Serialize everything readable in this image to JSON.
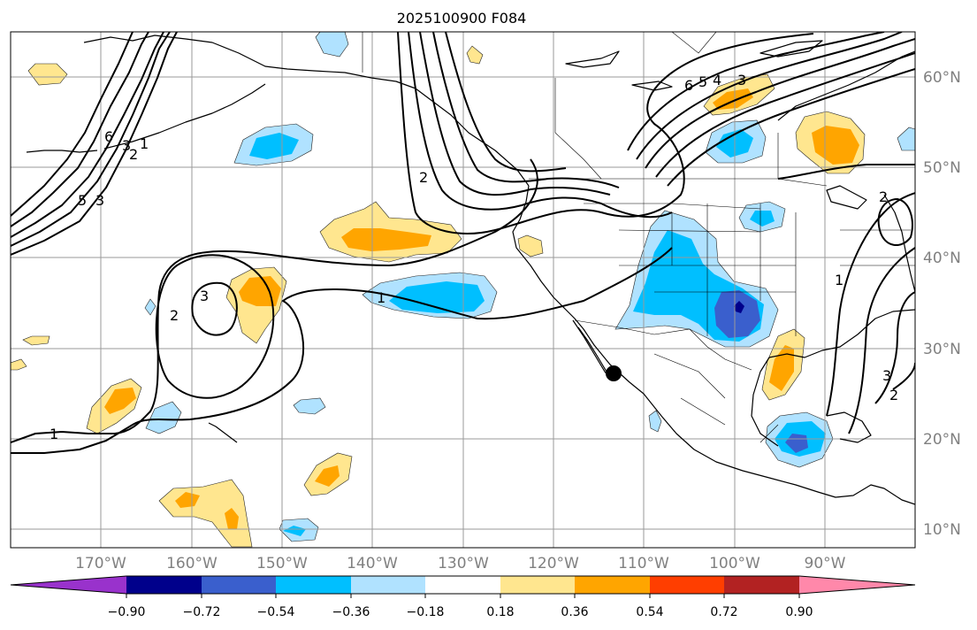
{
  "title": "2025100900 F084",
  "map": {
    "projection": "cylindrical",
    "lon_range": [
      "180°W",
      "80°W"
    ],
    "lat_range": [
      "8°N",
      "65°N"
    ],
    "lat_labels": [
      "60°N",
      "50°N",
      "40°N",
      "30°N",
      "20°N",
      "10°N"
    ],
    "lon_labels": [
      "170°W",
      "160°W",
      "150°W",
      "140°W",
      "130°W",
      "120°W",
      "110°W",
      "100°W",
      "90°W"
    ],
    "contour_labels": [
      "6",
      "3",
      "2",
      "1",
      "5",
      "3",
      "3",
      "2",
      "1",
      "1",
      "6",
      "5",
      "4",
      "3",
      "2",
      "2",
      "1",
      "3",
      "2"
    ],
    "marker": "black dot near 27°N 113°W"
  },
  "colorbar": {
    "ticks": [
      "−0.90",
      "−0.72",
      "−0.54",
      "−0.36",
      "−0.18",
      "0.18",
      "0.36",
      "0.54",
      "0.72",
      "0.90"
    ],
    "colors": [
      "#9932cc",
      "#00008b",
      "#3a5fcd",
      "#00bfff",
      "#b0e2ff",
      "#ffffff",
      "#ffe68f",
      "#ffa500",
      "#ff3e00",
      "#b22222",
      "#ff88aa"
    ]
  },
  "colors": {
    "ocean": "#ffffff",
    "coast": "#000000",
    "grid": "#9a9a9a",
    "contour": "#000000"
  }
}
